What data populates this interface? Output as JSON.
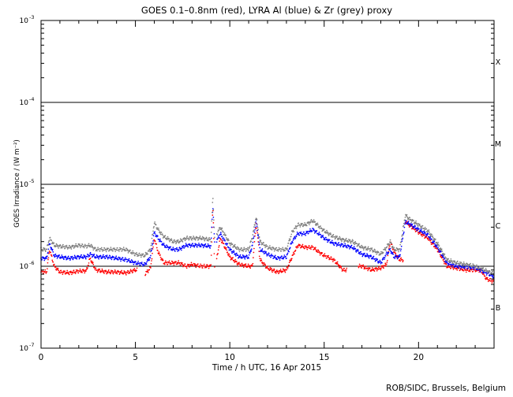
{
  "chart_data": {
    "type": "scatter",
    "title": "GOES 0.1–0.8nm (red), LYRA Al (blue) & Zr (grey) proxy",
    "xlabel": "Time / h UTC, 16 Apr 2015",
    "ylabel": "GOES Irradiance / (W m⁻²)",
    "xlim": [
      0,
      24
    ],
    "ylim": [
      1e-07,
      0.001
    ],
    "y_scale": "log",
    "grid": false,
    "x_ticks": [
      0,
      5,
      10,
      15,
      20
    ],
    "x_minor_step": 1,
    "y_ticks": [
      {
        "value": 1e-07,
        "base": "10",
        "exp": "-7"
      },
      {
        "value": 1e-06,
        "base": "10",
        "exp": "-6"
      },
      {
        "value": 1e-05,
        "base": "10",
        "exp": "-5"
      },
      {
        "value": 0.0001,
        "base": "10",
        "exp": "-4"
      },
      {
        "value": 0.001,
        "base": "10",
        "exp": "-3"
      }
    ],
    "reference_lines": [
      1e-06,
      1e-05,
      0.0001
    ],
    "flare_classes": [
      {
        "label": "X",
        "value": 0.000316
      },
      {
        "label": "M",
        "value": 3.16e-05
      },
      {
        "label": "C",
        "value": 3.16e-06
      },
      {
        "label": "B",
        "value": 3.16e-07
      }
    ],
    "series": [
      {
        "color": "#ff0000",
        "note": "GOES 0.1-0.8nm",
        "gaps": [
          [
            5.1,
            5.5
          ],
          [
            9.2,
            9.3
          ],
          [
            16.2,
            16.8
          ],
          [
            19.2,
            19.3
          ]
        ],
        "x": [
          0,
          0.3,
          0.45,
          0.7,
          1.0,
          1.5,
          2.0,
          2.4,
          2.6,
          2.9,
          3.5,
          4.0,
          4.5,
          5.0,
          5.1,
          5.5,
          5.8,
          6.0,
          6.2,
          6.5,
          7.0,
          7.3,
          7.7,
          8.0,
          8.5,
          9.0,
          9.1,
          9.2,
          9.5,
          10.0,
          10.5,
          11.0,
          11.2,
          11.4,
          11.6,
          12.0,
          12.5,
          13.0,
          13.3,
          13.6,
          14.0,
          14.4,
          14.7,
          15.0,
          15.5,
          16.0,
          16.2,
          16.8,
          17.0,
          17.5,
          18.0,
          18.3,
          18.5,
          18.7,
          19.0,
          19.2,
          19.3,
          19.5,
          20.0,
          20.5,
          21.0,
          21.5,
          22.0,
          22.5,
          23.0,
          23.3,
          23.6,
          24.0
        ],
        "y": [
          8.5e-07,
          8.5e-07,
          1.6e-06,
          1e-06,
          8.5e-07,
          8.3e-07,
          8.7e-07,
          8.8e-07,
          1.25e-06,
          9e-07,
          8.5e-07,
          8.5e-07,
          8.3e-07,
          9e-07,
          9e-07,
          8e-07,
          9.5e-07,
          2.2e-06,
          1.5e-06,
          1.1e-06,
          1.1e-06,
          1.1e-06,
          1e-06,
          1.05e-06,
          1e-06,
          1e-06,
          5.5e-06,
          9e-07,
          2.2e-06,
          1.3e-06,
          1.05e-06,
          1e-06,
          1e-06,
          3.4e-06,
          1.2e-06,
          9.5e-07,
          8.5e-07,
          9e-07,
          1.3e-06,
          1.8e-06,
          1.7e-06,
          1.7e-06,
          1.5e-06,
          1.35e-06,
          1.2e-06,
          9e-07,
          9e-07,
          1e-06,
          1e-06,
          9e-07,
          9.5e-07,
          1.05e-06,
          2e-06,
          1.5e-06,
          1.2e-06,
          1.2e-06,
          3.5e-06,
          3.2e-06,
          2.6e-06,
          2.2e-06,
          1.6e-06,
          1e-06,
          9.5e-07,
          9e-07,
          9e-07,
          9e-07,
          7e-07,
          6.5e-07
        ]
      },
      {
        "color": "#0000ff",
        "note": "LYRA Al proxy",
        "gaps": [
          [
            9.2,
            9.3
          ]
        ],
        "x": [
          0,
          0.3,
          0.45,
          0.7,
          1.0,
          1.5,
          2.0,
          2.4,
          2.6,
          2.9,
          3.5,
          4.0,
          4.5,
          5.0,
          5.5,
          5.8,
          6.0,
          6.2,
          6.5,
          7.0,
          7.3,
          7.7,
          8.0,
          8.5,
          9.0,
          9.1,
          9.2,
          9.5,
          10.0,
          10.5,
          11.0,
          11.2,
          11.4,
          11.6,
          12.0,
          12.5,
          13.0,
          13.3,
          13.6,
          14.0,
          14.4,
          14.7,
          15.0,
          15.5,
          16.0,
          16.5,
          17.0,
          17.5,
          18.0,
          18.3,
          18.5,
          18.7,
          19.0,
          19.3,
          19.5,
          20.0,
          20.5,
          21.0,
          21.5,
          22.0,
          22.5,
          23.0,
          23.5,
          24.0
        ],
        "y": [
          1.25e-06,
          1.25e-06,
          1.9e-06,
          1.35e-06,
          1.3e-06,
          1.25e-06,
          1.3e-06,
          1.3e-06,
          1.4e-06,
          1.3e-06,
          1.3e-06,
          1.25e-06,
          1.2e-06,
          1.1e-06,
          1.05e-06,
          1.3e-06,
          2.6e-06,
          2.2e-06,
          1.8e-06,
          1.6e-06,
          1.6e-06,
          1.8e-06,
          1.8e-06,
          1.8e-06,
          1.75e-06,
          5.6e-06,
          1.8e-06,
          2.5e-06,
          1.6e-06,
          1.3e-06,
          1.3e-06,
          1.8e-06,
          3.6e-06,
          1.6e-06,
          1.4e-06,
          1.25e-06,
          1.3e-06,
          2e-06,
          2.5e-06,
          2.5e-06,
          2.8e-06,
          2.5e-06,
          2.2e-06,
          1.9e-06,
          1.8e-06,
          1.7e-06,
          1.4e-06,
          1.3e-06,
          1.1e-06,
          1.4e-06,
          1.6e-06,
          1.3e-06,
          1.3e-06,
          3.5e-06,
          3.3e-06,
          2.8e-06,
          2.4e-06,
          1.7e-06,
          1.1e-06,
          1e-06,
          9.8e-07,
          9.6e-07,
          8.5e-07,
          7.5e-07
        ]
      },
      {
        "color": "#808080",
        "note": "LYRA Zr proxy",
        "gaps": [
          [
            9.2,
            9.3
          ]
        ],
        "x": [
          0,
          0.3,
          0.45,
          0.7,
          1.0,
          1.5,
          2.0,
          2.4,
          2.6,
          2.9,
          3.5,
          4.0,
          4.5,
          5.0,
          5.5,
          5.8,
          6.0,
          6.2,
          6.5,
          7.0,
          7.3,
          7.7,
          8.0,
          8.5,
          9.0,
          9.1,
          9.2,
          9.5,
          10.0,
          10.5,
          11.0,
          11.2,
          11.4,
          11.6,
          12.0,
          12.5,
          13.0,
          13.3,
          13.6,
          14.0,
          14.4,
          14.7,
          15.0,
          15.5,
          16.0,
          16.5,
          17.0,
          17.5,
          18.0,
          18.3,
          18.5,
          18.7,
          19.0,
          19.3,
          19.5,
          20.0,
          20.5,
          21.0,
          21.5,
          22.0,
          22.5,
          23.0,
          23.5,
          24.0
        ],
        "y": [
          1.6e-06,
          1.6e-06,
          2.2e-06,
          1.8e-06,
          1.75e-06,
          1.7e-06,
          1.8e-06,
          1.75e-06,
          1.8e-06,
          1.6e-06,
          1.6e-06,
          1.6e-06,
          1.6e-06,
          1.4e-06,
          1.35e-06,
          1.6e-06,
          3.4e-06,
          2.8e-06,
          2.3e-06,
          2e-06,
          2e-06,
          2.2e-06,
          2.2e-06,
          2.2e-06,
          2.1e-06,
          7e-06,
          2.2e-06,
          3e-06,
          1.9e-06,
          1.6e-06,
          1.6e-06,
          2.3e-06,
          4e-06,
          2e-06,
          1.7e-06,
          1.6e-06,
          1.6e-06,
          2.6e-06,
          3.2e-06,
          3.2e-06,
          3.6e-06,
          3.1e-06,
          2.7e-06,
          2.3e-06,
          2.1e-06,
          2e-06,
          1.7e-06,
          1.6e-06,
          1.4e-06,
          1.7e-06,
          2e-06,
          1.6e-06,
          1.6e-06,
          4.2e-06,
          3.8e-06,
          3.2e-06,
          2.7e-06,
          1.9e-06,
          1.2e-06,
          1.1e-06,
          1.05e-06,
          1e-06,
          9e-07,
          8e-07
        ]
      }
    ]
  },
  "credit": "ROB/SIDC, Brussels, Belgium"
}
